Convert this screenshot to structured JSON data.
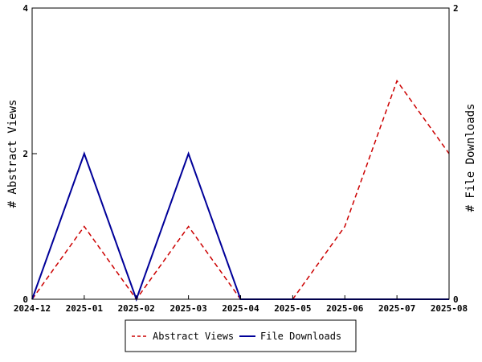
{
  "chart_data": {
    "type": "line",
    "title": "",
    "x": [
      "2024-12",
      "2025-01",
      "2025-02",
      "2025-03",
      "2025-04",
      "2025-05",
      "2025-06",
      "2025-07",
      "2025-08"
    ],
    "y_left": {
      "label": "# Abstract Views",
      "lim": [
        0,
        4
      ],
      "ticks": [
        0,
        2,
        4
      ]
    },
    "y_right": {
      "label": "# File Downloads",
      "lim": [
        0,
        2
      ],
      "ticks": [
        0,
        2
      ]
    },
    "series": [
      {
        "name": "Abstract Views",
        "axis": "left",
        "color": "#cc0000",
        "dash": "dashed",
        "values": [
          0,
          1,
          0,
          1,
          0,
          0,
          1,
          3,
          2
        ]
      },
      {
        "name": "File Downloads",
        "axis": "right",
        "color": "#000099",
        "dash": "solid",
        "values": [
          0,
          1,
          0,
          1,
          0,
          0,
          0,
          0,
          0
        ]
      }
    ],
    "legend": "bottom-center",
    "grid": false
  }
}
